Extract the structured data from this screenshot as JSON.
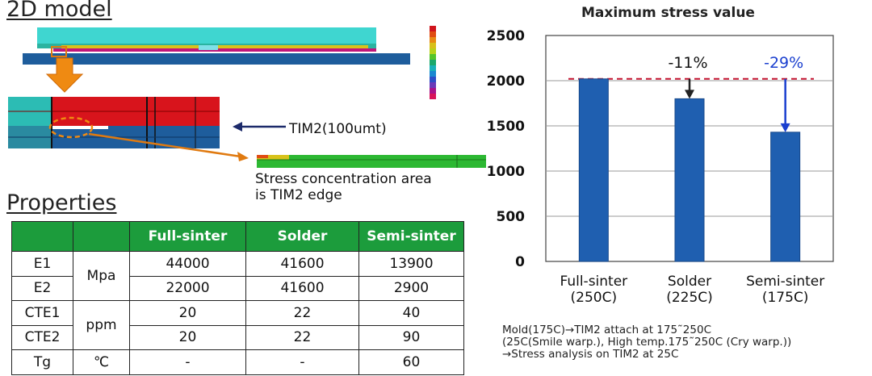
{
  "left": {
    "title": "2D model",
    "tim2_label": "TIM2(100umt)",
    "stress_note_line1": "Stress concentration area",
    "stress_note_line2": "is TIM2 edge"
  },
  "properties": {
    "title": "Properties",
    "headers": [
      "",
      "",
      "Full-sinter",
      "Solder",
      "Semi-sinter"
    ],
    "rows": [
      {
        "name": "E1",
        "unit": "Mpa",
        "values": [
          "44000",
          "41600",
          "13900"
        ]
      },
      {
        "name": "E2",
        "unit": "",
        "values": [
          "22000",
          "41600",
          "2900"
        ]
      },
      {
        "name": "CTE1",
        "unit": "ppm",
        "values": [
          "20",
          "22",
          "40"
        ]
      },
      {
        "name": "CTE2",
        "unit": "",
        "values": [
          "20",
          "22",
          "90"
        ]
      },
      {
        "name": "Tg",
        "unit": "℃",
        "values": [
          "-",
          "-",
          "60"
        ]
      }
    ]
  },
  "chart_data": {
    "type": "bar",
    "title": "Maximum stress value",
    "categories": [
      "Full-sinter",
      "Solder",
      "Semi-sinter"
    ],
    "category_sublabels": [
      "(250C)",
      "(225C)",
      "(175C)"
    ],
    "values": [
      2020,
      1800,
      1430
    ],
    "ylim": [
      0,
      2500
    ],
    "yticks": [
      0,
      500,
      1000,
      1500,
      2000,
      2500
    ],
    "grid": true,
    "reference_line": 2020,
    "annotations": [
      "",
      "-11%",
      "-29%"
    ],
    "colors": {
      "bar": "#1f5fb0",
      "ref": "#c4122f",
      "arrow1": "#222222",
      "arrow2": "#1a3fcf",
      "ann2": "#1a3fcf"
    }
  },
  "notes": {
    "line1": "Mold(175C)→TIM2 attach at 175˜250C",
    "line2": "(25C(Smile warp.), High temp.175˜250C (Cry warp.))",
    "line3": "→Stress analysis on TIM2 at 25C"
  }
}
